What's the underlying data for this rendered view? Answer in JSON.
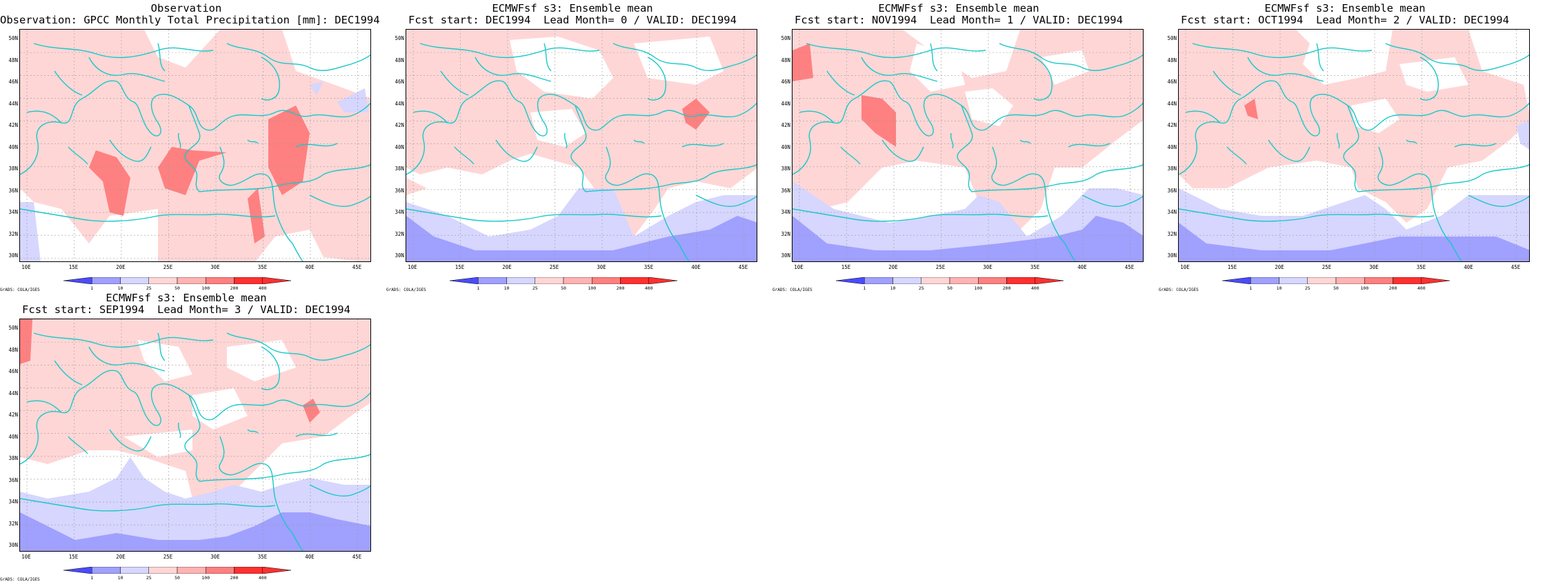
{
  "panels": [
    {
      "title": "Observation",
      "subtitle": "Observation: GPCC Monthly Total Precipitation [mm]: DEC1994",
      "variant": "obs"
    },
    {
      "title": "ECMWFsf s3: Ensemble mean",
      "subtitle": "Fcst start: DEC1994  Lead Month= 0 / VALID: DEC1994",
      "variant": "f0"
    },
    {
      "title": "ECMWFsf s3: Ensemble mean",
      "subtitle": "Fcst start: NOV1994  Lead Month= 1 / VALID: DEC1994",
      "variant": "f1"
    },
    {
      "title": "ECMWFsf s3: Ensemble mean",
      "subtitle": "Fcst start: OCT1994  Lead Month= 2 / VALID: DEC1994",
      "variant": "f2"
    },
    {
      "title": "ECMWFsf s3: Ensemble mean",
      "subtitle": "Fcst start: SEP1994  Lead Month= 3 / VALID: DEC1994",
      "variant": "f3"
    }
  ],
  "lat_labels": [
    "50N",
    "48N",
    "46N",
    "44N",
    "42N",
    "40N",
    "38N",
    "36N",
    "34N",
    "32N",
    "30N"
  ],
  "lon_labels": [
    "10E",
    "15E",
    "20E",
    "25E",
    "30E",
    "35E",
    "40E",
    "45E"
  ],
  "colorbar": {
    "labels": [
      "1",
      "10",
      "25",
      "50",
      "100",
      "200",
      "400"
    ],
    "colors": [
      "#4b4bff",
      "#a0a0ff",
      "#d6d6ff",
      "#ffd6d6",
      "#ffb3b3",
      "#ff8080",
      "#ff3030"
    ]
  },
  "grads_credit": "GrADS: COLA/IGES",
  "palette": {
    "coast": "#18c8c8",
    "grid": "#9a9a9a"
  }
}
